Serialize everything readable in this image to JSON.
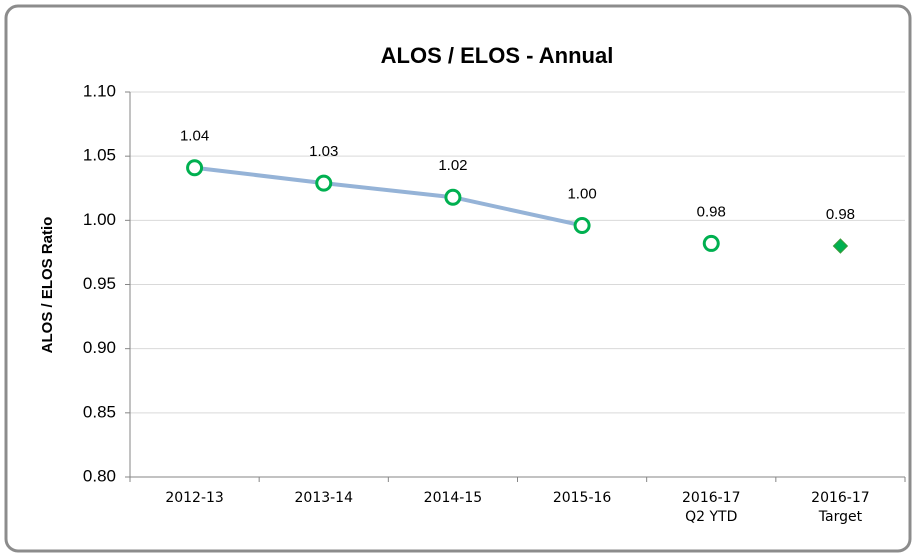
{
  "chart_data": {
    "type": "line",
    "title": "ALOS / ELOS - Annual",
    "y_label": "ALOS / ELOS Ratio",
    "categories": [
      "2012-13",
      "2013-14",
      "2014-15",
      "2015-16",
      "2016-17 Q2 YTD",
      "2016-17 Target"
    ],
    "series": [
      {
        "color": "#95b3d7",
        "marker_color": "#00b050",
        "marker": "circle",
        "line": true,
        "values": [
          1.041,
          1.029,
          1.018,
          0.996,
          null,
          null
        ],
        "value_labels": [
          "1.04",
          "1.03",
          "1.02",
          "1.00",
          null,
          null
        ]
      },
      {
        "color": "#00b050",
        "marker_color": "#00b050",
        "marker": "circle",
        "line": false,
        "values": [
          null,
          null,
          null,
          null,
          0.982,
          null
        ],
        "value_labels": [
          null,
          null,
          null,
          null,
          "0.98",
          null
        ]
      },
      {
        "color": "#00b050",
        "marker_color": "#00b050",
        "marker": "diamond",
        "line": false,
        "values": [
          null,
          null,
          null,
          null,
          null,
          0.98
        ],
        "value_labels": [
          null,
          null,
          null,
          null,
          null,
          "0.98"
        ]
      }
    ],
    "ylim": [
      0.8,
      1.1
    ],
    "yticks": [
      {
        "value": 0.8,
        "label": "0.80"
      },
      {
        "value": 0.85,
        "label": "0.85"
      },
      {
        "value": 0.9,
        "label": "0.90"
      },
      {
        "value": 0.95,
        "label": "0.95"
      },
      {
        "value": 1.0,
        "label": "1.00"
      },
      {
        "value": 1.05,
        "label": "1.05"
      },
      {
        "value": 1.1,
        "label": "1.10"
      }
    ],
    "grid": true
  }
}
